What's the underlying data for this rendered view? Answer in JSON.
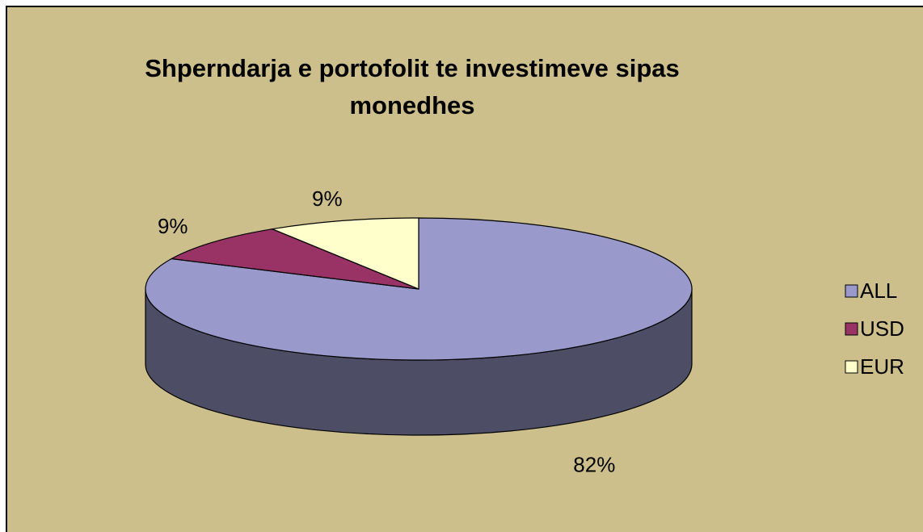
{
  "chart_data": {
    "type": "pie",
    "title": "Shperndarja e portofolit te investimeve sipas monedhes",
    "categories": [
      "ALL",
      "USD",
      "EUR"
    ],
    "values": [
      82,
      9,
      9
    ],
    "value_labels": [
      "82%",
      "9%",
      "9%"
    ],
    "colors": [
      "#9999cc",
      "#993366",
      "#ffffcc"
    ],
    "legend": "right"
  }
}
